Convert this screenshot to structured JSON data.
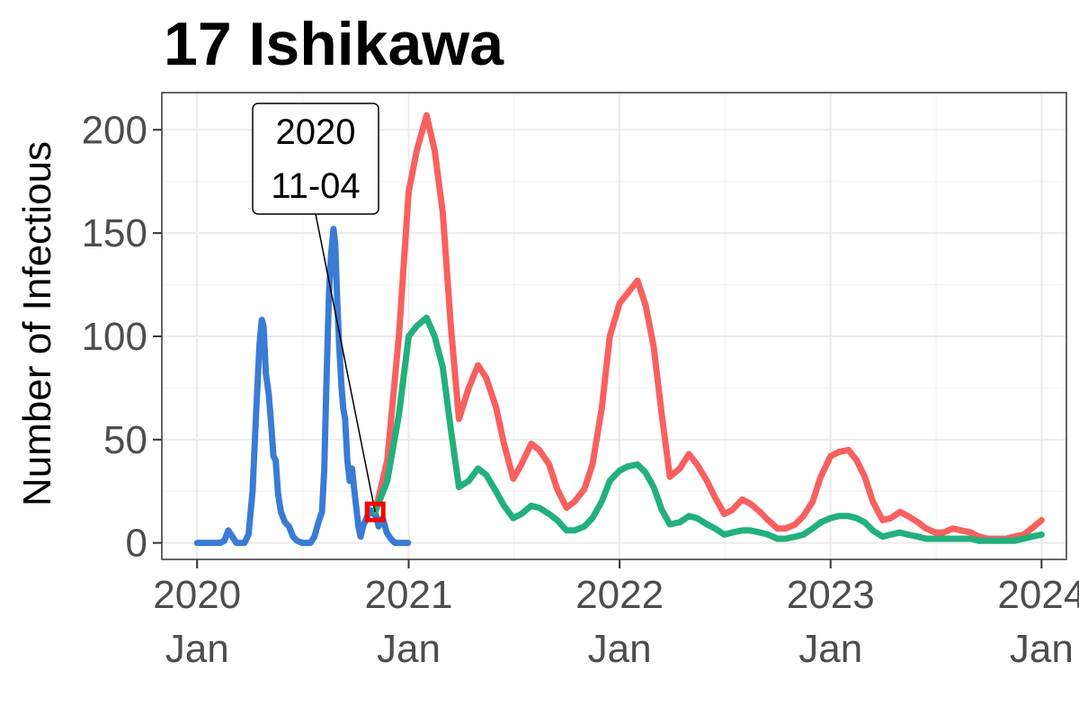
{
  "chart_data": {
    "type": "line",
    "title": "17 Ishikawa",
    "ylabel": "Number of Infectious",
    "xlabel": "",
    "ylim": [
      -8,
      218
    ],
    "xlim": [
      "2019-11-01",
      "2024-02-13"
    ],
    "y_ticks": [
      0,
      50,
      100,
      150,
      200
    ],
    "x_ticks": [
      {
        "date": "2020-01-01",
        "label1": "2020",
        "label2": "Jan"
      },
      {
        "date": "2021-01-01",
        "label1": "2021",
        "label2": "Jan"
      },
      {
        "date": "2022-01-01",
        "label1": "2022",
        "label2": "Jan"
      },
      {
        "date": "2023-01-01",
        "label1": "2023",
        "label2": "Jan"
      },
      {
        "date": "2024-01-01",
        "label1": "2024",
        "label2": "Jan"
      }
    ],
    "grid": true,
    "annotation": {
      "line1": "2020",
      "line2": "11-04",
      "date": "2020-11-04",
      "value": 15,
      "marker_color": "#ff0000"
    },
    "series": [
      {
        "color": "#3a7bd5",
        "points": [
          [
            "2020-01-01",
            0
          ],
          [
            "2020-02-10",
            0
          ],
          [
            "2020-02-17",
            1
          ],
          [
            "2020-02-24",
            6
          ],
          [
            "2020-03-02",
            3
          ],
          [
            "2020-03-09",
            0
          ],
          [
            "2020-03-23",
            0
          ],
          [
            "2020-03-30",
            4
          ],
          [
            "2020-04-06",
            25
          ],
          [
            "2020-04-13",
            68
          ],
          [
            "2020-04-18",
            96
          ],
          [
            "2020-04-22",
            108
          ],
          [
            "2020-04-25",
            105
          ],
          [
            "2020-04-29",
            82
          ],
          [
            "2020-05-04",
            72
          ],
          [
            "2020-05-08",
            58
          ],
          [
            "2020-05-12",
            42
          ],
          [
            "2020-05-16",
            40
          ],
          [
            "2020-05-20",
            24
          ],
          [
            "2020-05-25",
            15
          ],
          [
            "2020-06-01",
            10
          ],
          [
            "2020-06-08",
            8
          ],
          [
            "2020-06-15",
            3
          ],
          [
            "2020-06-22",
            1
          ],
          [
            "2020-07-01",
            0
          ],
          [
            "2020-07-15",
            0
          ],
          [
            "2020-07-22",
            3
          ],
          [
            "2020-07-29",
            10
          ],
          [
            "2020-08-04",
            15
          ],
          [
            "2020-08-08",
            35
          ],
          [
            "2020-08-12",
            80
          ],
          [
            "2020-08-16",
            120
          ],
          [
            "2020-08-20",
            140
          ],
          [
            "2020-08-24",
            152
          ],
          [
            "2020-08-27",
            145
          ],
          [
            "2020-08-30",
            120
          ],
          [
            "2020-09-03",
            95
          ],
          [
            "2020-09-07",
            75
          ],
          [
            "2020-09-10",
            65
          ],
          [
            "2020-09-13",
            60
          ],
          [
            "2020-09-17",
            40
          ],
          [
            "2020-09-21",
            30
          ],
          [
            "2020-09-25",
            36
          ],
          [
            "2020-09-28",
            28
          ],
          [
            "2020-10-02",
            18
          ],
          [
            "2020-10-06",
            8
          ],
          [
            "2020-10-10",
            3
          ],
          [
            "2020-10-14",
            8
          ],
          [
            "2020-10-20",
            12
          ],
          [
            "2020-10-26",
            16
          ],
          [
            "2020-11-01",
            14
          ],
          [
            "2020-11-04",
            15
          ],
          [
            "2020-11-10",
            8
          ],
          [
            "2020-11-17",
            12
          ],
          [
            "2020-11-24",
            5
          ],
          [
            "2020-12-01",
            2
          ],
          [
            "2020-12-08",
            0
          ],
          [
            "2020-12-31",
            0
          ]
        ]
      },
      {
        "color": "#f8605f",
        "points": [
          [
            "2020-11-04",
            15
          ],
          [
            "2020-11-25",
            40
          ],
          [
            "2020-12-15",
            100
          ],
          [
            "2021-01-01",
            170
          ],
          [
            "2021-01-15",
            190
          ],
          [
            "2021-02-01",
            207
          ],
          [
            "2021-02-15",
            190
          ],
          [
            "2021-03-01",
            160
          ],
          [
            "2021-03-15",
            105
          ],
          [
            "2021-03-29",
            60
          ],
          [
            "2021-04-15",
            75
          ],
          [
            "2021-05-01",
            86
          ],
          [
            "2021-05-15",
            80
          ],
          [
            "2021-06-01",
            66
          ],
          [
            "2021-06-15",
            48
          ],
          [
            "2021-07-01",
            31
          ],
          [
            "2021-07-15",
            38
          ],
          [
            "2021-08-01",
            48
          ],
          [
            "2021-08-15",
            45
          ],
          [
            "2021-09-01",
            38
          ],
          [
            "2021-09-15",
            26
          ],
          [
            "2021-10-01",
            17
          ],
          [
            "2021-10-15",
            20
          ],
          [
            "2021-11-01",
            26
          ],
          [
            "2021-11-15",
            38
          ],
          [
            "2021-12-01",
            65
          ],
          [
            "2021-12-15",
            100
          ],
          [
            "2022-01-01",
            116
          ],
          [
            "2022-01-15",
            121
          ],
          [
            "2022-02-01",
            127
          ],
          [
            "2022-02-15",
            115
          ],
          [
            "2022-03-01",
            95
          ],
          [
            "2022-03-15",
            62
          ],
          [
            "2022-03-29",
            32
          ],
          [
            "2022-04-15",
            36
          ],
          [
            "2022-05-01",
            43
          ],
          [
            "2022-05-15",
            38
          ],
          [
            "2022-06-01",
            30
          ],
          [
            "2022-06-15",
            22
          ],
          [
            "2022-07-01",
            14
          ],
          [
            "2022-07-15",
            16
          ],
          [
            "2022-08-01",
            21
          ],
          [
            "2022-08-15",
            19
          ],
          [
            "2022-09-01",
            15
          ],
          [
            "2022-09-15",
            11
          ],
          [
            "2022-10-01",
            7
          ],
          [
            "2022-10-15",
            7
          ],
          [
            "2022-11-01",
            9
          ],
          [
            "2022-11-15",
            13
          ],
          [
            "2022-12-01",
            20
          ],
          [
            "2022-12-15",
            32
          ],
          [
            "2023-01-01",
            42
          ],
          [
            "2023-01-15",
            44
          ],
          [
            "2023-02-01",
            45
          ],
          [
            "2023-02-15",
            40
          ],
          [
            "2023-03-01",
            32
          ],
          [
            "2023-03-15",
            20
          ],
          [
            "2023-04-01",
            11
          ],
          [
            "2023-04-15",
            12
          ],
          [
            "2023-05-01",
            15
          ],
          [
            "2023-05-15",
            13
          ],
          [
            "2023-06-01",
            10
          ],
          [
            "2023-06-15",
            7
          ],
          [
            "2023-07-01",
            5
          ],
          [
            "2023-07-15",
            5
          ],
          [
            "2023-08-01",
            7
          ],
          [
            "2023-08-15",
            6
          ],
          [
            "2023-09-01",
            5
          ],
          [
            "2023-09-15",
            3
          ],
          [
            "2023-10-01",
            2
          ],
          [
            "2023-10-15",
            2
          ],
          [
            "2023-11-01",
            2
          ],
          [
            "2023-11-15",
            3
          ],
          [
            "2023-12-01",
            4
          ],
          [
            "2023-12-15",
            7
          ],
          [
            "2024-01-01",
            11
          ]
        ]
      },
      {
        "color": "#22b07d",
        "points": [
          [
            "2020-11-04",
            15
          ],
          [
            "2020-11-25",
            30
          ],
          [
            "2020-12-15",
            62
          ],
          [
            "2021-01-01",
            100
          ],
          [
            "2021-01-15",
            105
          ],
          [
            "2021-02-01",
            109
          ],
          [
            "2021-02-15",
            100
          ],
          [
            "2021-03-01",
            85
          ],
          [
            "2021-03-15",
            55
          ],
          [
            "2021-03-29",
            27
          ],
          [
            "2021-04-15",
            30
          ],
          [
            "2021-05-01",
            36
          ],
          [
            "2021-05-15",
            33
          ],
          [
            "2021-06-01",
            25
          ],
          [
            "2021-06-15",
            18
          ],
          [
            "2021-07-01",
            12
          ],
          [
            "2021-07-15",
            14
          ],
          [
            "2021-08-01",
            18
          ],
          [
            "2021-08-15",
            17
          ],
          [
            "2021-09-01",
            14
          ],
          [
            "2021-09-15",
            11
          ],
          [
            "2021-10-01",
            6
          ],
          [
            "2021-10-15",
            6
          ],
          [
            "2021-11-01",
            8
          ],
          [
            "2021-11-15",
            12
          ],
          [
            "2021-12-01",
            20
          ],
          [
            "2021-12-15",
            30
          ],
          [
            "2022-01-01",
            35
          ],
          [
            "2022-01-15",
            37
          ],
          [
            "2022-02-01",
            38
          ],
          [
            "2022-02-15",
            34
          ],
          [
            "2022-03-01",
            27
          ],
          [
            "2022-03-15",
            16
          ],
          [
            "2022-03-29",
            9
          ],
          [
            "2022-04-15",
            10
          ],
          [
            "2022-05-01",
            13
          ],
          [
            "2022-05-15",
            12
          ],
          [
            "2022-06-01",
            9
          ],
          [
            "2022-06-15",
            7
          ],
          [
            "2022-07-01",
            4
          ],
          [
            "2022-07-15",
            5
          ],
          [
            "2022-08-01",
            6
          ],
          [
            "2022-08-15",
            6
          ],
          [
            "2022-09-01",
            5
          ],
          [
            "2022-09-15",
            4
          ],
          [
            "2022-10-01",
            2
          ],
          [
            "2022-10-15",
            2
          ],
          [
            "2022-11-01",
            3
          ],
          [
            "2022-11-15",
            4
          ],
          [
            "2022-12-01",
            7
          ],
          [
            "2022-12-15",
            10
          ],
          [
            "2023-01-01",
            12
          ],
          [
            "2023-01-15",
            13
          ],
          [
            "2023-02-01",
            13
          ],
          [
            "2023-02-15",
            12
          ],
          [
            "2023-03-01",
            10
          ],
          [
            "2023-03-15",
            6
          ],
          [
            "2023-04-01",
            3
          ],
          [
            "2023-04-15",
            4
          ],
          [
            "2023-05-01",
            5
          ],
          [
            "2023-05-15",
            4
          ],
          [
            "2023-06-01",
            3
          ],
          [
            "2023-06-15",
            2
          ],
          [
            "2023-07-01",
            2
          ],
          [
            "2023-07-15",
            2
          ],
          [
            "2023-08-01",
            2
          ],
          [
            "2023-08-15",
            2
          ],
          [
            "2023-09-01",
            2
          ],
          [
            "2023-09-15",
            1
          ],
          [
            "2023-10-01",
            1
          ],
          [
            "2023-10-15",
            1
          ],
          [
            "2023-11-01",
            1
          ],
          [
            "2023-11-15",
            1
          ],
          [
            "2023-12-01",
            2
          ],
          [
            "2023-12-15",
            3
          ],
          [
            "2024-01-01",
            4
          ]
        ]
      }
    ]
  }
}
